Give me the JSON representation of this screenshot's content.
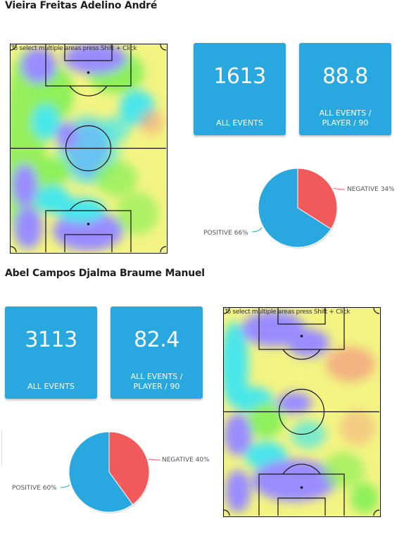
{
  "colors": {
    "card": "#29a8e0",
    "pie_positive": "#29a8e0",
    "pie_negative": "#f05a5b",
    "heat_low": "#9a8cff",
    "heat_mid": "#49e6ea",
    "heat_green": "#8ef05a",
    "heat_yellow": "#f3f482",
    "heat_hot": "#f3a382"
  },
  "heatmap_hint": "To select multiple areas press Shift + Click",
  "players": [
    {
      "name": "Vieira Freitas Adelino André",
      "all_events_value": "1613",
      "all_events_label": "ALL EVENTS",
      "per90_value": "88.8",
      "per90_label_1": "ALL EVENTS /",
      "per90_label_2": "PLAYER / 90",
      "pie": {
        "positive_pct": 66,
        "negative_pct": 34,
        "positive_label": "POSITIVE 66%",
        "negative_label": "NEGATIVE 34%"
      }
    },
    {
      "name": "Abel Campos Djalma Braume Manuel",
      "all_events_value": "3113",
      "all_events_label": "ALL EVENTS",
      "per90_value": "82.4",
      "per90_label_1": "ALL EVENTS /",
      "per90_label_2": "PLAYER / 90",
      "pie": {
        "positive_pct": 60,
        "negative_pct": 40,
        "positive_label": "POSITIVE 60%",
        "negative_label": "NEGATIVE 40%"
      }
    }
  ]
}
